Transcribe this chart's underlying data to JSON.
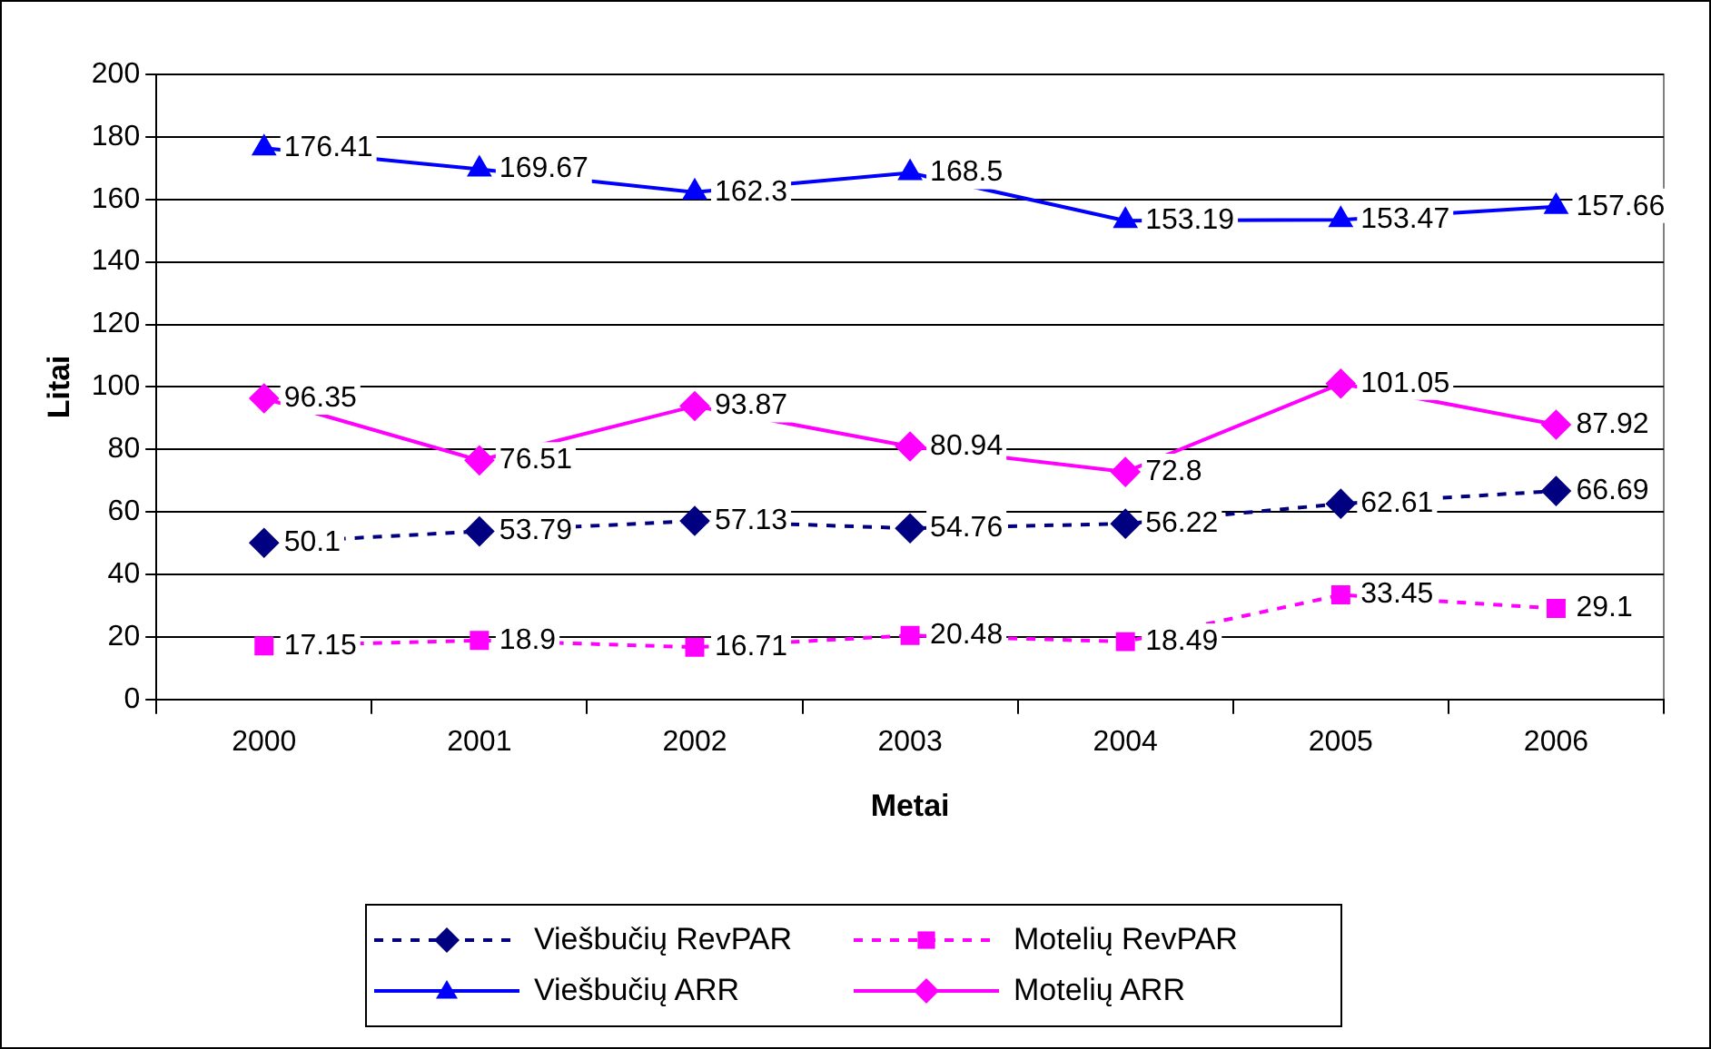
{
  "chart_data": {
    "type": "line",
    "xlabel": "Metai",
    "ylabel": "Litai",
    "categories": [
      "2000",
      "2001",
      "2002",
      "2003",
      "2004",
      "2005",
      "2006"
    ],
    "ylim": [
      0,
      200
    ],
    "yticks": [
      0,
      20,
      40,
      60,
      80,
      100,
      120,
      140,
      160,
      180,
      200
    ],
    "grid": "y",
    "legend": "bottom",
    "data_labels": true,
    "series": [
      {
        "name": "Viešbučių RevPAR",
        "color": "#000080",
        "line_style": "dashed",
        "marker": "diamond",
        "values": [
          50.1,
          53.79,
          57.13,
          54.76,
          56.22,
          62.61,
          66.69
        ]
      },
      {
        "name": "Motelių RevPAR",
        "color": "#ff00ff",
        "line_style": "dashed",
        "marker": "square",
        "values": [
          17.15,
          18.9,
          16.71,
          20.48,
          18.49,
          33.45,
          29.1
        ]
      },
      {
        "name": "Viešbučių ARR",
        "color": "#0000ff",
        "line_style": "solid",
        "marker": "triangle",
        "values": [
          176.41,
          169.67,
          162.3,
          168.5,
          153.19,
          153.47,
          157.66
        ]
      },
      {
        "name": "Motelių ARR",
        "color": "#ff00ff",
        "line_style": "solid",
        "marker": "diamond",
        "values": [
          96.35,
          76.51,
          93.87,
          80.94,
          72.8,
          101.05,
          87.92
        ]
      }
    ]
  }
}
